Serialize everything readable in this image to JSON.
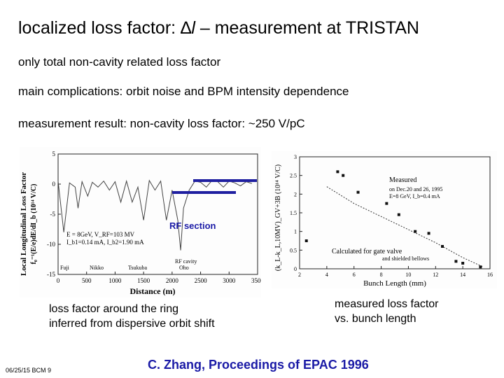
{
  "title": {
    "prefix": "localized loss factor: ",
    "delta": "∆",
    "italic": "l",
    "suffix": " – measurement at TRISTAN"
  },
  "bullets": [
    "only total non-cavity related loss factor",
    "main complications: orbit noise and BPM intensity dependence",
    "measurement result: non-cavity loss factor: ~250 V/pC"
  ],
  "left_plot": {
    "ylabel": "Local Longitudinal Loss Factor",
    "ylabel2": "f₀⁻¹(E/e)dE/dI_b (10¹⁴ V/C)",
    "xlabel": "Distance (m)",
    "xticks": [
      "0",
      "500",
      "1000",
      "1500",
      "2000",
      "2500",
      "3000",
      "3500"
    ],
    "yticks": [
      "5",
      "0",
      "-5",
      "-10",
      "-15"
    ],
    "annot1": "E = 8GeV,   V_RF=103 MV",
    "annot2": "I_b1=0.14 mA, I_b2=1.90 mA",
    "places": [
      "Fuji",
      "Nikko",
      "Tsukuba",
      "RF cavity",
      "Oho"
    ],
    "rf_label": "RF section",
    "caption_1": "loss factor around the ring",
    "caption_2": "inferred from dispersive orbit shift"
  },
  "right_plot": {
    "ylabel": "(k_L-k_L,10MV)_GV+3B  (10¹⁴ V/C)",
    "xlabel": "Bunch Length (mm)",
    "xticks": [
      "2",
      "4",
      "6",
      "8",
      "10",
      "12",
      "14",
      "16"
    ],
    "yticks": [
      "3",
      "2.5",
      "2",
      "1.5",
      "1",
      "0.5",
      "0"
    ],
    "measured_1": "Measured",
    "measured_2": "on Dec.20 and 26, 1995",
    "measured_3": "E=8 GeV, I_b=0.4 mA",
    "calc_1": "Calculated  for gate valve",
    "calc_2": "and shielded bellows",
    "caption_1": "measured loss factor",
    "caption_2": "vs. bunch length"
  },
  "reference": "C. Zhang, Proceedings of EPAC 1996",
  "footer": "06/25/15 BCM 9",
  "colors": {
    "accent": "#1a1aa6",
    "band": "#1f1fa0"
  },
  "chart_data": [
    {
      "type": "line",
      "title": "",
      "xlabel": "Distance (m)",
      "ylabel": "Local Longitudinal Loss Factor f0^-1(E/e)dE/dIb (10^14 V/C)",
      "xlim": [
        0,
        3500
      ],
      "ylim": [
        -15,
        5
      ],
      "x": [
        0,
        100,
        200,
        300,
        350,
        420,
        520,
        600,
        700,
        800,
        900,
        1000,
        1100,
        1200,
        1300,
        1400,
        1500,
        1600,
        1700,
        1800,
        1900,
        2000,
        2100,
        2150,
        2200,
        2300,
        2400,
        2500,
        2600,
        2700,
        2800,
        2900,
        3000,
        3100,
        3200,
        3300,
        3400
      ],
      "series": [
        {
          "values": [
            0.5,
            -8,
            0.2,
            -0.5,
            -4,
            0.4,
            -2,
            0.3,
            -0.5,
            0.5,
            -1,
            0.4,
            -3,
            0.5,
            -3,
            -0.5,
            -6,
            0.6,
            -1,
            0.5,
            -6,
            -1,
            -6,
            -11,
            -4,
            -1,
            0.5,
            0.3,
            -0.5,
            0.6,
            0.4,
            -0.5,
            0.5,
            0.2,
            -0.3,
            0.4,
            0.1
          ]
        }
      ]
    },
    {
      "type": "scatter",
      "title": "",
      "xlabel": "Bunch Length (mm)",
      "ylabel": "(kL-kL,10MV)GV+3B (10^14 V/C)",
      "xlim": [
        2,
        16
      ],
      "ylim": [
        0,
        3
      ],
      "series": [
        {
          "name": "Measured",
          "x": [
            2.5,
            4.8,
            5.2,
            6.3,
            8.4,
            9.3,
            10.5,
            11.5,
            12.5,
            13.5,
            14.0,
            15.3
          ],
          "y": [
            0.75,
            2.6,
            2.5,
            2.05,
            1.75,
            1.45,
            1.0,
            0.95,
            0.6,
            0.2,
            0.15,
            0.05
          ]
        },
        {
          "name": "Calculated",
          "x": [
            4,
            6,
            8,
            10,
            12,
            14,
            15.5
          ],
          "y": [
            2.2,
            1.75,
            1.4,
            1.05,
            0.7,
            0.3,
            0.05
          ]
        }
      ]
    }
  ]
}
